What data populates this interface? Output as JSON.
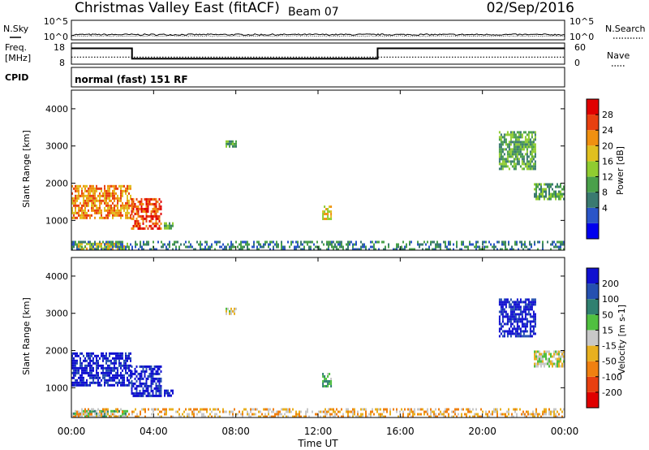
{
  "header": {
    "station": "Christmas Valley East (fitACF)",
    "beam": "Beam 07",
    "date": "02/Sep/2016"
  },
  "noise_panel": {
    "left_label": "N.Sky",
    "right_label": "N.Search",
    "left_ticks": [
      "10^5",
      "10^0"
    ],
    "right_ticks": [
      "10^5",
      "10^0"
    ]
  },
  "freq_panel": {
    "left_label_line1": "Freq.",
    "left_label_line2": "[MHz]",
    "right_label": "Nave",
    "left_ticks": [
      "18",
      "8"
    ],
    "right_ticks": [
      "60",
      "0"
    ],
    "freq_steps": [
      {
        "t": 0.0,
        "freq": 15.5
      },
      {
        "t": 2.95,
        "freq": 10.6
      },
      {
        "t": 14.9,
        "freq": 15.5
      },
      {
        "t": 24.0,
        "freq": 15.5
      }
    ],
    "nave_level": 20
  },
  "cpid": {
    "label": "CPID",
    "mode": "normal (fast) 151 RF"
  },
  "x_axis": {
    "title": "Time UT",
    "ticks": [
      "00:00",
      "04:00",
      "08:00",
      "12:00",
      "16:00",
      "20:00",
      "00:00"
    ],
    "range": [
      0,
      24
    ]
  },
  "power_panel": {
    "ylabel": "Slant Range [km]",
    "yticks": [
      "4000",
      "3000",
      "2000",
      "1000"
    ],
    "colorbar_label": "Power [dB]",
    "colorbar_ticks": [
      "28",
      "24",
      "20",
      "16",
      "12",
      "8",
      "4"
    ],
    "colors": [
      "#0000ee",
      "#2a55c8",
      "#3a7a70",
      "#4aa04a",
      "#90cc30",
      "#e0c020",
      "#f09010",
      "#e84010",
      "#e00000"
    ]
  },
  "velocity_panel": {
    "ylabel": "Slant Range [km]",
    "yticks": [
      "4000",
      "3000",
      "2000",
      "1000"
    ],
    "colorbar_label": "Velocity [m s-1]",
    "colorbar_ticks": [
      "200",
      "100",
      "50",
      "15",
      "-15",
      "-50",
      "-100",
      "-200"
    ],
    "colors": [
      "#1010d0",
      "#2550b0",
      "#308070",
      "#50c040",
      "#c8c8c8",
      "#e8b020",
      "#f08010",
      "#e84010",
      "#e00000"
    ]
  },
  "chart_data": {
    "type": "heatmap",
    "x_range_hours": [
      0,
      24
    ],
    "y_range_km": [
      200,
      4500
    ],
    "echo_regions": [
      {
        "t0": 0.0,
        "t1": 2.9,
        "r0": 1050,
        "r1": 1950,
        "power_db": 22,
        "velocity": 200
      },
      {
        "t0": 2.9,
        "t1": 4.4,
        "r0": 800,
        "r1": 1600,
        "power_db": 26,
        "velocity": 180
      },
      {
        "t0": 4.5,
        "t1": 4.9,
        "r0": 800,
        "r1": 950,
        "power_db": 10,
        "velocity": 150
      },
      {
        "t0": 0.0,
        "t1": 2.7,
        "r0": 250,
        "r1": 400,
        "power_db": 18,
        "velocity": 30
      },
      {
        "t0": 12.2,
        "t1": 12.6,
        "r0": 1050,
        "r1": 1400,
        "power_db": 18,
        "velocity": 40
      },
      {
        "t0": 7.5,
        "t1": 8.0,
        "r0": 3000,
        "r1": 3150,
        "power_db": 10,
        "velocity": 10
      },
      {
        "t0": 20.8,
        "t1": 22.6,
        "r0": 2400,
        "r1": 3400,
        "power_db": 10,
        "velocity": 150
      },
      {
        "t0": 22.5,
        "t1": 24.0,
        "r0": 1600,
        "r1": 2000,
        "power_db": 12,
        "velocity": -10
      },
      {
        "t0": 0.0,
        "t1": 24.0,
        "r0": 220,
        "r1": 450,
        "power_db": 8,
        "velocity": -20
      }
    ]
  }
}
